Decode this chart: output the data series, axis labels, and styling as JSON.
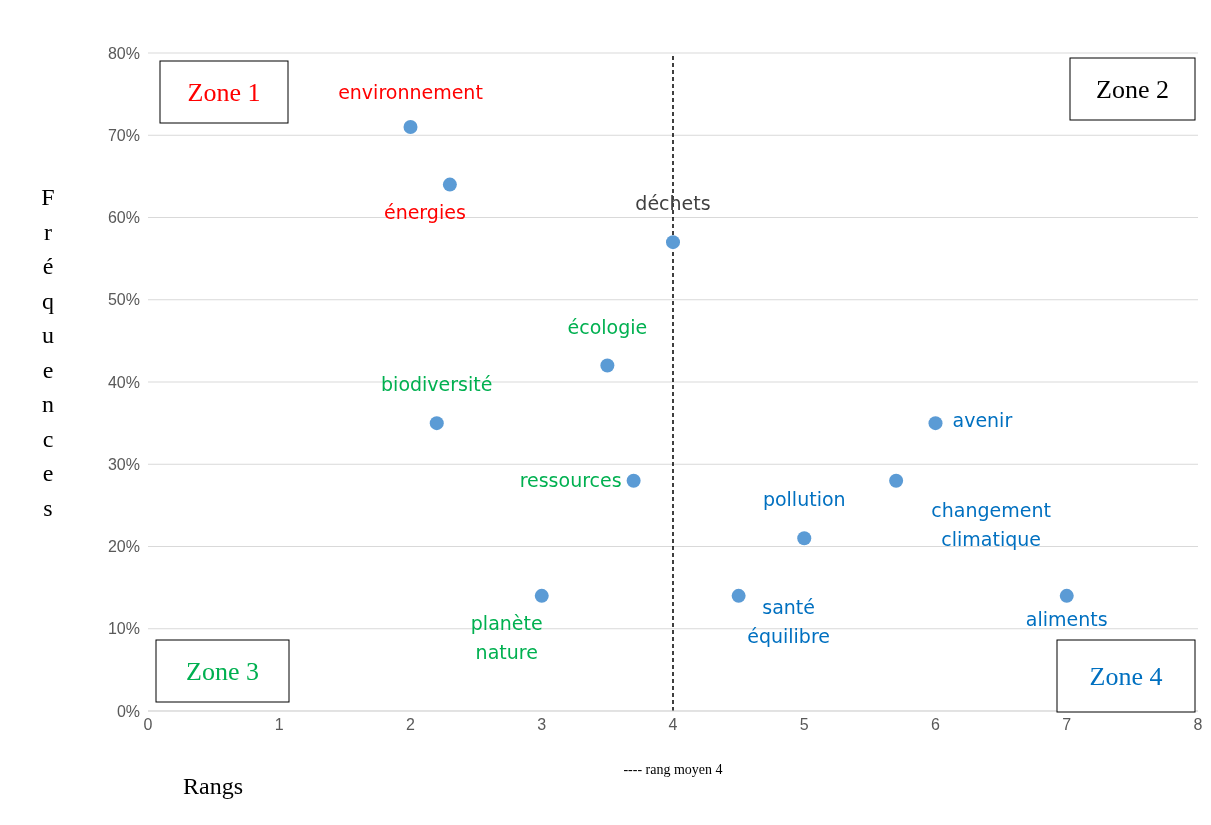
{
  "chart_data": {
    "type": "scatter",
    "xlabel": "Rangs",
    "ylabel": "Fréquences",
    "xlim": [
      0,
      8
    ],
    "xticks": [
      0,
      1,
      2,
      3,
      4,
      5,
      6,
      7,
      8
    ],
    "ylim": [
      0,
      80
    ],
    "yticks": [
      {
        "value": 0,
        "label": "0%"
      },
      {
        "value": 10,
        "label": "10%"
      },
      {
        "value": 20,
        "label": "20%"
      },
      {
        "value": 30,
        "label": "30%"
      },
      {
        "value": 40,
        "label": "40%"
      },
      {
        "value": 50,
        "label": "50%"
      },
      {
        "value": 60,
        "label": "60%"
      },
      {
        "value": 70,
        "label": "70%"
      },
      {
        "value": 80,
        "label": "80%"
      }
    ],
    "grid": "y",
    "marker": "circle",
    "series": [
      {
        "color": "#5b9bd5",
        "x": [
          2,
          2.3,
          4,
          3.5,
          2.2,
          3.7,
          3,
          4.5,
          5,
          5.7,
          6,
          7
        ],
        "values": [
          71,
          64,
          57,
          42,
          35,
          28,
          14,
          14,
          21,
          28,
          35,
          14
        ]
      }
    ],
    "ref_lines": [
      {
        "axis": "x",
        "value": 4,
        "label": "---- rang moyen 4",
        "color": "#000000",
        "line_style": "dashed"
      }
    ],
    "annotations": [
      "Zone 1",
      "Zone 2",
      "Zone 3",
      "Zone 4",
      {
        "text": "environnement",
        "x": 2,
        "y": 71
      },
      {
        "text": "énergies",
        "x": 2.3,
        "y": 64
      },
      {
        "text": "déchets",
        "x": 4,
        "y": 57
      },
      {
        "text": "écologie",
        "x": 3.5,
        "y": 42
      },
      {
        "text": "biodiversité",
        "x": 2.2,
        "y": 35
      },
      {
        "text": "ressources",
        "x": 3.7,
        "y": 28
      },
      {
        "text": "planète nature",
        "x": 3,
        "y": 14
      },
      {
        "text": "santé équilibre",
        "x": 4.5,
        "y": 14
      },
      {
        "text": "pollution",
        "x": 5,
        "y": 21
      },
      {
        "text": "changement climatique",
        "x": 5.7,
        "y": 28
      },
      {
        "text": "avenir",
        "x": 6,
        "y": 35
      },
      {
        "text": "aliments",
        "x": 7,
        "y": 14
      }
    ]
  }
}
